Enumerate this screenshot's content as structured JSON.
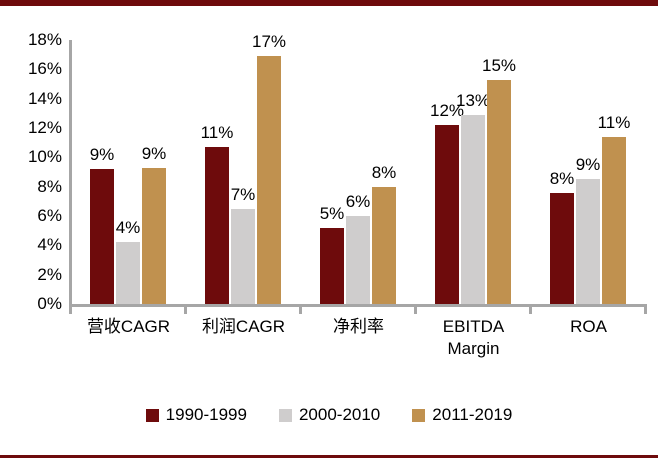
{
  "decor": {
    "top_bar_color": "#6E0B0C",
    "bottom_rule_color": "#6E0B0C"
  },
  "chart_data": {
    "type": "bar",
    "title": "",
    "xlabel": "",
    "ylabel": "",
    "categories": [
      "营收CAGR",
      "利润CAGR",
      "净利率",
      "EBITDA Margin",
      "ROA"
    ],
    "series": [
      {
        "name": "1990-1999",
        "color": "#6E0B0C",
        "values": [
          9.2,
          10.7,
          5.2,
          12.2,
          7.6
        ],
        "labels": [
          "9%",
          "11%",
          "5%",
          "12%",
          "8%"
        ]
      },
      {
        "name": "2000-2010",
        "color": "#CFCDCD",
        "values": [
          4.2,
          6.5,
          6.0,
          12.9,
          8.5
        ],
        "labels": [
          "4%",
          "7%",
          "6%",
          "13%",
          "9%"
        ]
      },
      {
        "name": "2011-2019",
        "color": "#C0914F",
        "values": [
          9.3,
          16.9,
          8.0,
          15.3,
          11.4
        ],
        "labels": [
          "9%",
          "17%",
          "8%",
          "15%",
          "11%"
        ]
      }
    ],
    "ylim": [
      0,
      18
    ],
    "ytick_step": 2,
    "ytick_labels": [
      "0%",
      "2%",
      "4%",
      "6%",
      "8%",
      "10%",
      "12%",
      "14%",
      "16%",
      "18%"
    ],
    "grid": false,
    "legend_position": "bottom",
    "axis_color": "#A6A6A6",
    "text_color": "#000000"
  }
}
